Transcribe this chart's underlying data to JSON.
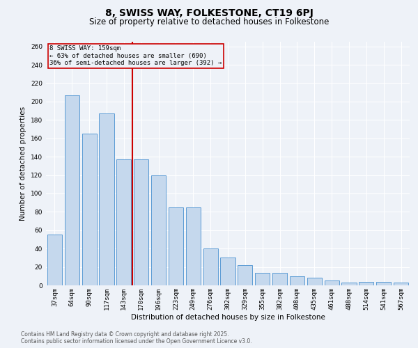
{
  "title": "8, SWISS WAY, FOLKESTONE, CT19 6PJ",
  "subtitle": "Size of property relative to detached houses in Folkestone",
  "xlabel": "Distribution of detached houses by size in Folkestone",
  "ylabel": "Number of detached properties",
  "categories": [
    "37sqm",
    "64sqm",
    "90sqm",
    "117sqm",
    "143sqm",
    "170sqm",
    "196sqm",
    "223sqm",
    "249sqm",
    "276sqm",
    "302sqm",
    "329sqm",
    "355sqm",
    "382sqm",
    "408sqm",
    "435sqm",
    "461sqm",
    "488sqm",
    "514sqm",
    "541sqm",
    "567sqm"
  ],
  "values": [
    55,
    207,
    165,
    187,
    137,
    137,
    120,
    85,
    85,
    40,
    30,
    22,
    14,
    14,
    10,
    8,
    5,
    3,
    4,
    4,
    3
  ],
  "bar_color": "#c5d8ed",
  "bar_edge_color": "#5b9bd5",
  "vline_x": 4.5,
  "vline_color": "#cc0000",
  "annotation_text": "8 SWISS WAY: 159sqm\n← 63% of detached houses are smaller (690)\n36% of semi-detached houses are larger (392) →",
  "annotation_box_color": "#cc0000",
  "ylim": [
    0,
    265
  ],
  "yticks": [
    0,
    20,
    40,
    60,
    80,
    100,
    120,
    140,
    160,
    180,
    200,
    220,
    240,
    260
  ],
  "footnote1": "Contains HM Land Registry data © Crown copyright and database right 2025.",
  "footnote2": "Contains public sector information licensed under the Open Government Licence v3.0.",
  "bg_color": "#eef2f8",
  "grid_color": "#ffffff",
  "title_fontsize": 10,
  "subtitle_fontsize": 8.5,
  "axis_label_fontsize": 7.5,
  "tick_fontsize": 6.5,
  "footnote_fontsize": 5.5
}
